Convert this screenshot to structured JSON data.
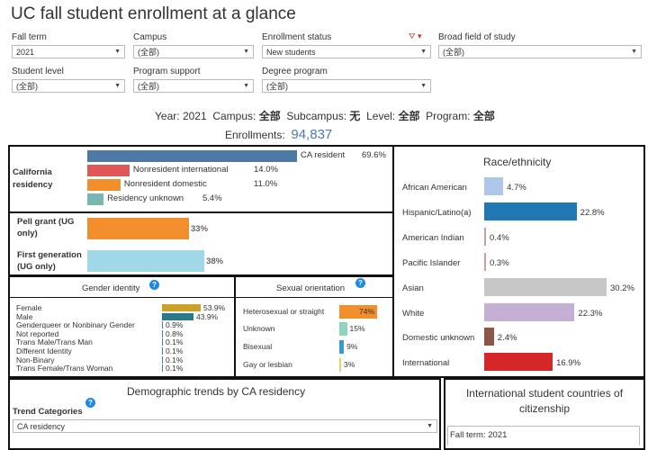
{
  "title": "UC fall student enrollment at a glance",
  "filters": {
    "fall_term": {
      "label": "Fall term",
      "value": "2021"
    },
    "campus": {
      "label": "Campus",
      "value": "(全部)"
    },
    "enrollment_status": {
      "label": "Enrollment status",
      "value": "New students"
    },
    "field_of_study": {
      "label": "Broad field of study",
      "value": "(全部)"
    },
    "student_level": {
      "label": "Student level",
      "value": "(全部)"
    },
    "program_support": {
      "label": "Program support",
      "value": "(全部)"
    },
    "degree_program": {
      "label": "Degree program",
      "value": "(全部)"
    }
  },
  "summary": {
    "year_label": "Year:",
    "year": "2021",
    "campus_label": "Campus:",
    "campus": "全部",
    "subcampus_label": "Subcampus:",
    "subcampus": "无",
    "level_label": "Level:",
    "level": "全部",
    "program_label": "Program:",
    "program": "全部",
    "enrollments_label": "Enrollments:",
    "enrollments": "94,837"
  },
  "residency": {
    "label": "California residency",
    "items": [
      {
        "name": "CA resident",
        "pct": "69.6%",
        "value": 69.6,
        "color": "#4e79a7"
      },
      {
        "name": "Nonresident international",
        "pct": "14.0%",
        "value": 14.0,
        "color": "#e15759"
      },
      {
        "name": "Nonresident domestic",
        "pct": "11.0%",
        "value": 11.0,
        "color": "#f28e2b"
      },
      {
        "name": "Residency unknown",
        "pct": "5.4%",
        "value": 5.4,
        "color": "#76b7b2"
      }
    ]
  },
  "pell": {
    "label": "Pell grant (UG only)",
    "pct": "33%",
    "value": 33,
    "color": "#f28e2b"
  },
  "firstgen": {
    "label": "First generation (UG only)",
    "pct": "38%",
    "value": 38,
    "color": "#a0d8e8"
  },
  "gender": {
    "title": "Gender identity",
    "items": [
      {
        "name": "Female",
        "pct": "53.9%",
        "value": 53.9,
        "color": "#c9a227"
      },
      {
        "name": "Male",
        "pct": "43.9%",
        "value": 43.9,
        "color": "#2a7a8c"
      },
      {
        "name": "Genderqueer or Nonbinary Gender",
        "pct": "0.9%",
        "value": 0.9,
        "color": "#4e79a7"
      },
      {
        "name": "Not reported",
        "pct": "0.8%",
        "value": 0.8,
        "color": "#4e79a7"
      },
      {
        "name": "Trans Male/Trans Man",
        "pct": "0.1%",
        "value": 0.1,
        "color": "#4e79a7"
      },
      {
        "name": "Different Identity",
        "pct": "0.1%",
        "value": 0.1,
        "color": "#4e79a7"
      },
      {
        "name": "Non-Binary",
        "pct": "0.1%",
        "value": 0.1,
        "color": "#4e79a7"
      },
      {
        "name": "Trans Female/Trans Woman",
        "pct": "0.1%",
        "value": 0.1,
        "color": "#4e79a7"
      }
    ]
  },
  "orientation": {
    "title": "Sexual orientation",
    "items": [
      {
        "name": "Heterosexual or straight",
        "pct": "74%",
        "value": 74,
        "color": "#f28e2b"
      },
      {
        "name": "Unknown",
        "pct": "15%",
        "value": 15,
        "color": "#8fd3c0"
      },
      {
        "name": "Bisexual",
        "pct": "9%",
        "value": 9,
        "color": "#3a9bc8"
      },
      {
        "name": "Gay or lesbian",
        "pct": "3%",
        "value": 3,
        "color": "#f1ce63"
      }
    ]
  },
  "race": {
    "title": "Race/ethnicity",
    "items": [
      {
        "name": "African American",
        "pct": "4.7%",
        "value": 4.7,
        "color": "#aec7e8"
      },
      {
        "name": "Hispanic/Latino(a)",
        "pct": "22.8%",
        "value": 22.8,
        "color": "#1f77b4"
      },
      {
        "name": "American Indian",
        "pct": "0.4%",
        "value": 0.4,
        "color": "#c7a0a0"
      },
      {
        "name": "Pacific Islander",
        "pct": "0.3%",
        "value": 0.3,
        "color": "#c7a0a0"
      },
      {
        "name": "Asian",
        "pct": "30.2%",
        "value": 30.2,
        "color": "#c7c7c7"
      },
      {
        "name": "White",
        "pct": "22.3%",
        "value": 22.3,
        "color": "#c5b0d5"
      },
      {
        "name": "Domestic unknown",
        "pct": "2.4%",
        "value": 2.4,
        "color": "#8c564b"
      },
      {
        "name": "International",
        "pct": "16.9%",
        "value": 16.9,
        "color": "#d62728"
      }
    ]
  },
  "trends": {
    "title": "Demographic trends by CA residency",
    "category_label": "Trend Categories",
    "category_value": "CA residency"
  },
  "countries": {
    "title": "International student countries of citizenship",
    "fall_term": "Fall term: 2021"
  }
}
